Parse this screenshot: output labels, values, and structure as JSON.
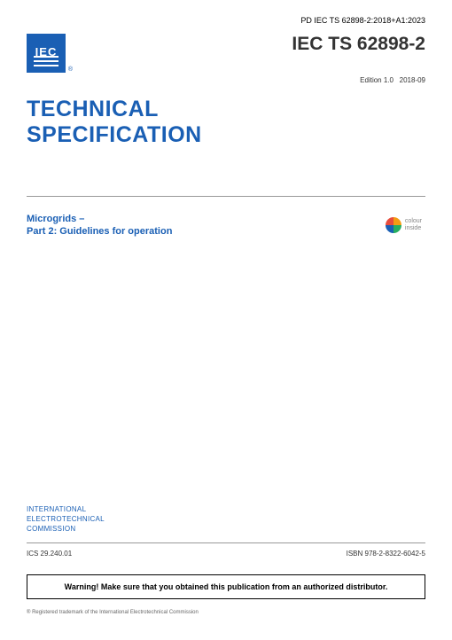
{
  "header_ref": "PD IEC TS 62898-2:2018+A1:2023",
  "logo": {
    "text": "IEC"
  },
  "doc_id": "IEC TS 62898-2",
  "edition_label": "Edition 1.0",
  "edition_date": "2018-09",
  "doc_type_line1": "TECHNICAL",
  "doc_type_line2": "SPECIFICATION",
  "colour_badge_line1": "colour",
  "colour_badge_line2": "inside",
  "subtitle_line1": "Microgrids –",
  "subtitle_line2": "Part 2: Guidelines for operation",
  "org_line1": "INTERNATIONAL",
  "org_line2": "ELECTROTECHNICAL",
  "org_line3": "COMMISSION",
  "ics": "ICS 29.240.01",
  "isbn": "ISBN 978-2-8322-6042-5",
  "warning": "Warning! Make sure that you obtained this publication from an authorized distributor.",
  "trademark": "® Registered trademark of the International Electrotechnical Commission",
  "colors": {
    "brand": "#1a5fb4",
    "text": "#333333",
    "rule": "#999999"
  }
}
